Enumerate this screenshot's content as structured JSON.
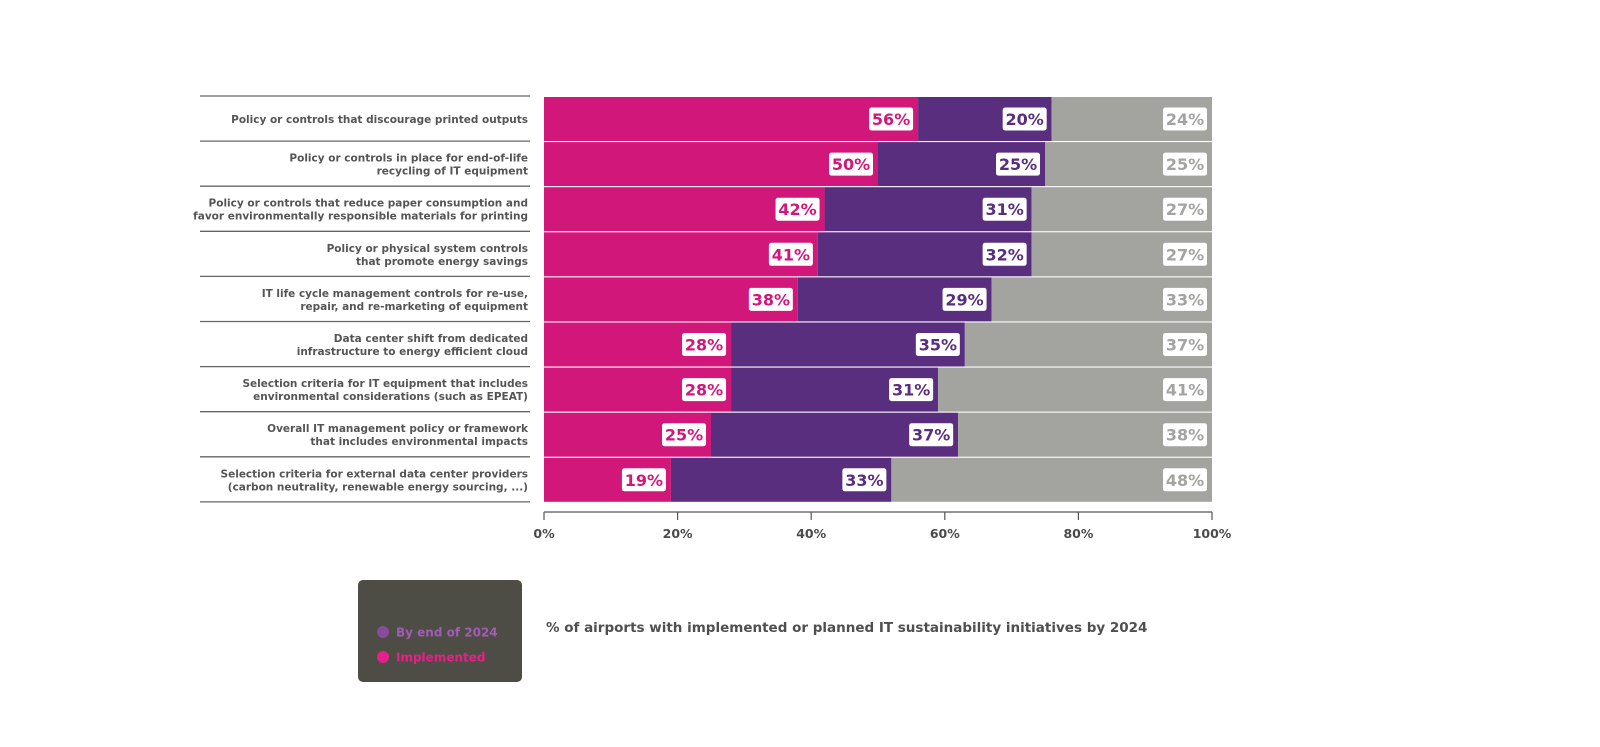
{
  "chart_data": {
    "type": "bar",
    "orientation": "horizontal",
    "stacked": true,
    "categories": [
      [
        "Policy or controls that discourage printed outputs"
      ],
      [
        "Policy or controls in place for end-of-life",
        "recycling of IT equipment"
      ],
      [
        "Policy or controls that reduce paper consumption and",
        "favor environmentally responsible materials for printing"
      ],
      [
        "Policy or physical system controls",
        "that promote energy savings"
      ],
      [
        "IT life cycle management controls for re-use,",
        "repair, and re-marketing of equipment"
      ],
      [
        "Data center shift from dedicated",
        "infrastructure to energy efficient cloud"
      ],
      [
        "Selection criteria for IT equipment that includes",
        "environmental considerations (such as EPEAT)"
      ],
      [
        "Overall IT management policy or framework",
        "that includes environmental impacts"
      ],
      [
        "Selection criteria for external data center providers",
        "(carbon neutrality, renewable energy sourcing, ...)"
      ]
    ],
    "series": [
      {
        "name": "Implemented",
        "color": "#d2177a",
        "values": [
          56,
          50,
          42,
          41,
          38,
          28,
          28,
          25,
          19
        ]
      },
      {
        "name": "By end of 2024",
        "color": "#5a2e7e",
        "values": [
          20,
          25,
          31,
          32,
          29,
          35,
          31,
          37,
          33
        ]
      },
      {
        "name": "",
        "color": "#a3a3a0",
        "values": [
          24,
          25,
          27,
          27,
          33,
          37,
          41,
          38,
          48
        ]
      }
    ],
    "value_suffix": "%",
    "xlim": [
      0,
      100
    ],
    "xticks": [
      "0%",
      "20%",
      "40%",
      "60%",
      "80%",
      "100%"
    ],
    "legend": {
      "title": "",
      "entries": [
        "By end of 2024",
        "Implemented"
      ],
      "dot_colors": [
        "#8a4a9e",
        "#e61f8a"
      ],
      "text_colors": [
        "#a25cb5",
        "#ea1e86"
      ],
      "background": "#4d4d46"
    },
    "caption": "% of airports with implemented or planned IT sustainability initiatives by 2024",
    "grid": false
  }
}
